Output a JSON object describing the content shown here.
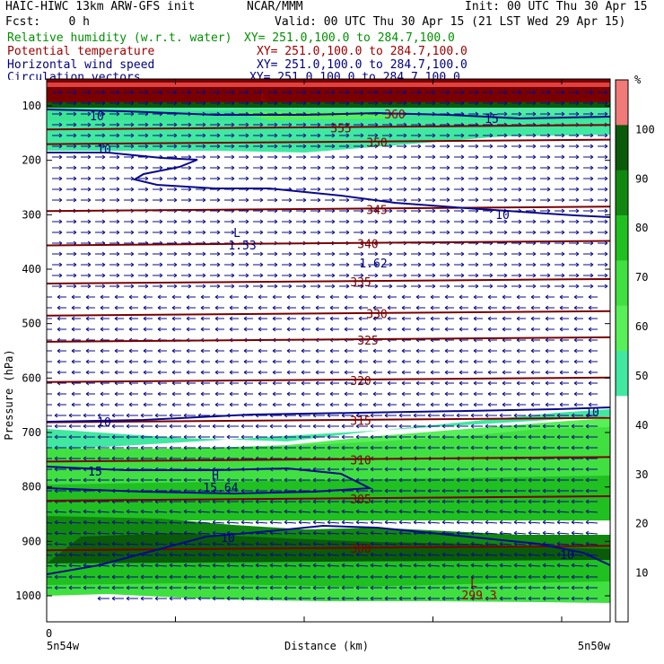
{
  "header": {
    "title_left": "HAIC-HIWC 13km ARW-GFS init",
    "title_center": "NCAR/MMM",
    "init": "Init: 00 UTC Thu 30 Apr 15",
    "fcst": "Fcst:    0 h",
    "valid": "Valid: 00 UTC Thu 30 Apr 15 (21 LST Wed 29 Apr 15)"
  },
  "fields": [
    {
      "name": "Relative humidity (w.r.t. water)",
      "xy": "XY= 251.0,100.0 to 284.7,100.0",
      "color": "#009000"
    },
    {
      "name": "Potential temperature",
      "xy": "XY= 251.0,100.0 to 284.7,100.0",
      "color": "#a00000"
    },
    {
      "name": "Horizontal wind speed",
      "xy": "XY= 251.0,100.0 to 284.7,100.0",
      "color": "#000080"
    },
    {
      "name": "Circulation vectors",
      "xy": "XY= 251.0,100.0 to 284.7,100.0",
      "color": "#000080"
    }
  ],
  "chart_data": {
    "type": "heatmap",
    "xlabel": "Distance (km)",
    "ylabel": "Pressure (hPa)",
    "x_start_label": "0",
    "x_left_label": "5n54w",
    "x_right_label": "5n50w",
    "yticks": [
      100,
      200,
      300,
      400,
      500,
      600,
      700,
      800,
      900,
      1000
    ],
    "ylim": [
      1060,
      70
    ],
    "colorbar": {
      "unit": "%",
      "ticks": [
        10,
        20,
        30,
        40,
        50,
        60,
        70,
        80,
        90,
        100
      ],
      "colors": [
        "#ffffff",
        "#ffffff",
        "#ffffff",
        "#ffffff",
        "#ffffff",
        "#40e8a0",
        "#58f058",
        "#40e040",
        "#20c020",
        "#108810",
        "#0a5a0a",
        "#f07a78"
      ]
    },
    "theta_contours": [
      {
        "label": "355",
        "p": 140
      },
      {
        "label": "350",
        "p": 167
      },
      {
        "label": "345",
        "p": 290
      },
      {
        "label": "340",
        "p": 353
      },
      {
        "label": "335",
        "p": 423
      },
      {
        "label": "330",
        "p": 482
      },
      {
        "label": "325",
        "p": 530
      },
      {
        "label": "320",
        "p": 604
      },
      {
        "label": "315",
        "p": 678
      },
      {
        "label": "310",
        "p": 750
      },
      {
        "label": "305",
        "p": 822
      },
      {
        "label": "300",
        "p": 913
      }
    ],
    "contour_labels": [
      {
        "label": "360",
        "color": "#a00000"
      },
      {
        "label": "10",
        "color": "#000080"
      },
      {
        "label": "15",
        "color": "#000080"
      }
    ],
    "extrema": [
      {
        "kind": "L",
        "value": "1.53",
        "color": "#000080"
      },
      {
        "kind": "",
        "value": "1.62",
        "color": "#000080"
      },
      {
        "kind": "H",
        "value": "15.64",
        "color": "#000080"
      },
      {
        "kind": "L",
        "value": "299.3",
        "color": "#a00000"
      },
      {
        "kind": "L",
        "value": "",
        "color": "#a00000"
      }
    ]
  }
}
